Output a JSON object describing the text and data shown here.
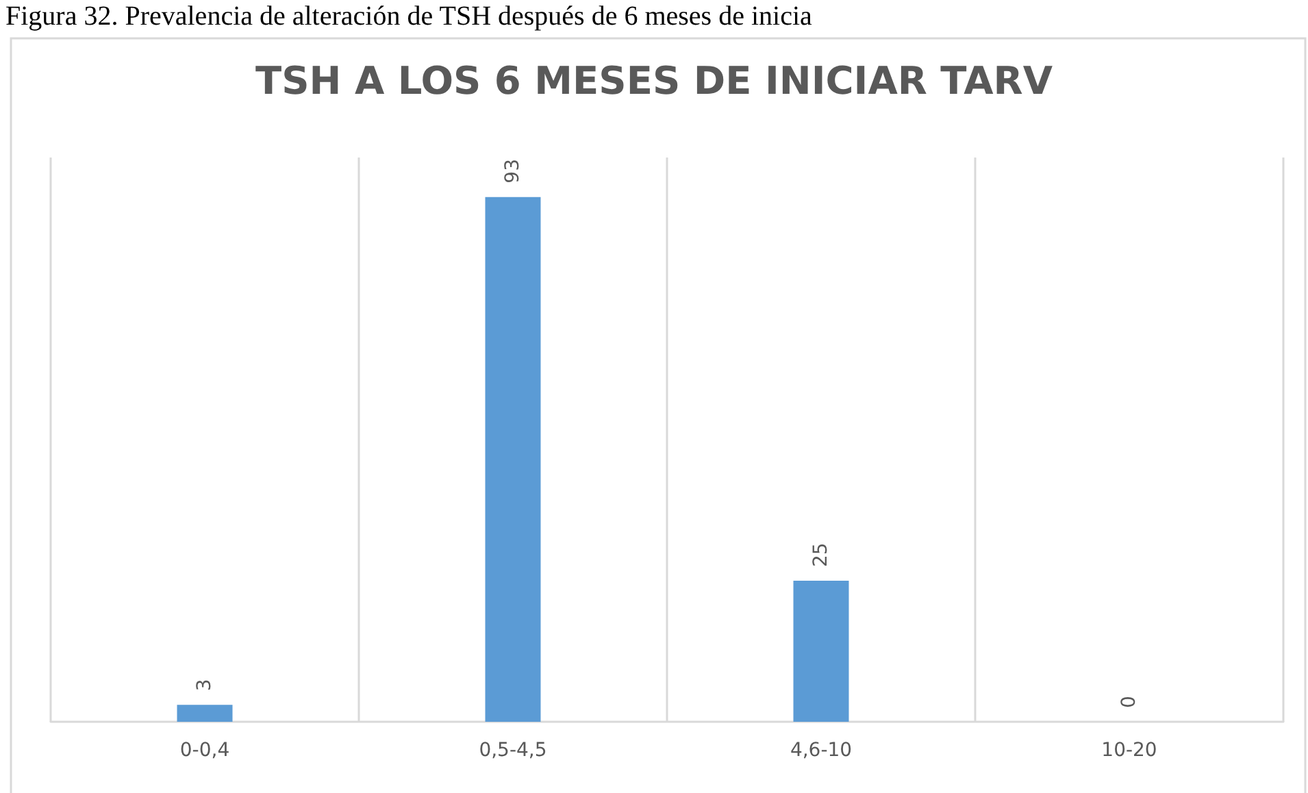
{
  "chart_data": {
    "type": "bar",
    "title": "TSH A LOS 6 MESES DE INICIAR TARV",
    "annotations": [
      "Figura 32. Prevalencia de alteración de TSH después de 6 meses de inicia"
    ],
    "categories": [
      "0-0,4",
      "0,5-4,5",
      "4,6-10",
      "10-20"
    ],
    "values": [
      3,
      93,
      25,
      0
    ],
    "color": "#5b9bd5",
    "data_labels": true,
    "grid": "x"
  }
}
